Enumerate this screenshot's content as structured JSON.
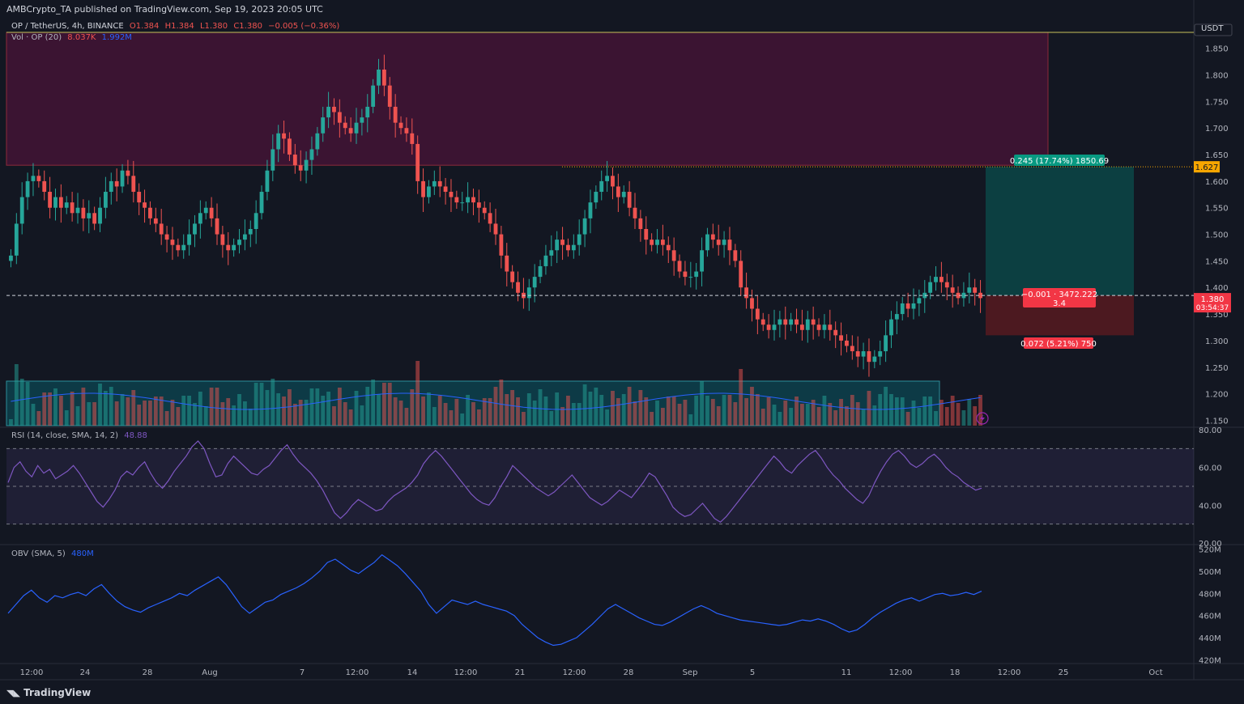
{
  "header": {
    "published": "AMBCrypto_TA published on TradingView.com, Sep 19, 2023 20:05 UTC"
  },
  "legend": {
    "symbol": "OP / TetherUS, 4h, BINANCE",
    "open": "O1.384",
    "high": "H1.384",
    "low": "L1.380",
    "close": "C1.380",
    "change": "−0.005 (−0.36%)",
    "vol_label": "Vol · OP (20)",
    "vol_value": "8.037K",
    "vol_ma": "1.992M"
  },
  "rsi_legend": {
    "label": "RSI (14, close, SMA, 14, 2)",
    "value": "48.88"
  },
  "obv_legend": {
    "label": "OBV (SMA, 5)",
    "value": "480M"
  },
  "currency": "USDT",
  "brand": "TradingView",
  "price_tag": {
    "price": "1.380",
    "countdown": "03:54:37"
  },
  "target_tag": "1.627",
  "position": {
    "target": "0.245 (17.74%) 1850.69",
    "entry_line1": "−0.001 · 3472.222",
    "entry_line2": "3.4",
    "stop": "0.072 (5.21%) 750"
  },
  "colors": {
    "up": "#26a69a",
    "down": "#ef5350",
    "rsi": "#7e57c2",
    "obv": "#2962ff",
    "bg": "#131722"
  },
  "chart_data": [
    {
      "type": "candlestick",
      "x_ticks": [
        "12:00",
        "24",
        "28",
        "Aug",
        "7",
        "12:00",
        "14",
        "12:00",
        "21",
        "12:00",
        "28",
        "Sep",
        "5",
        "11",
        "12:00",
        "18",
        "12:00",
        "25",
        "Oct"
      ],
      "y_ticks": [
        "1.850",
        "1.800",
        "1.750",
        "1.700",
        "1.650",
        "1.600",
        "1.550",
        "1.500",
        "1.450",
        "1.400",
        "1.350",
        "1.300",
        "1.250",
        "1.200",
        "1.150"
      ],
      "ylim": [
        1.14,
        1.88
      ],
      "close_series": [
        1.46,
        1.52,
        1.57,
        1.6,
        1.61,
        1.6,
        1.58,
        1.55,
        1.57,
        1.55,
        1.56,
        1.54,
        1.55,
        1.53,
        1.54,
        1.52,
        1.55,
        1.58,
        1.6,
        1.59,
        1.62,
        1.61,
        1.58,
        1.56,
        1.55,
        1.53,
        1.52,
        1.5,
        1.49,
        1.48,
        1.47,
        1.48,
        1.5,
        1.52,
        1.54,
        1.55,
        1.53,
        1.5,
        1.48,
        1.47,
        1.48,
        1.49,
        1.5,
        1.51,
        1.54,
        1.58,
        1.62,
        1.66,
        1.69,
        1.68,
        1.65,
        1.63,
        1.62,
        1.64,
        1.66,
        1.69,
        1.72,
        1.74,
        1.73,
        1.71,
        1.7,
        1.69,
        1.71,
        1.72,
        1.74,
        1.78,
        1.81,
        1.78,
        1.74,
        1.71,
        1.7,
        1.69,
        1.67,
        1.6,
        1.57,
        1.59,
        1.6,
        1.59,
        1.58,
        1.57,
        1.56,
        1.56,
        1.57,
        1.56,
        1.55,
        1.54,
        1.52,
        1.5,
        1.46,
        1.43,
        1.41,
        1.39,
        1.38,
        1.4,
        1.42,
        1.44,
        1.46,
        1.47,
        1.49,
        1.48,
        1.47,
        1.48,
        1.5,
        1.53,
        1.56,
        1.58,
        1.6,
        1.61,
        1.59,
        1.57,
        1.58,
        1.55,
        1.53,
        1.51,
        1.49,
        1.48,
        1.49,
        1.48,
        1.47,
        1.45,
        1.43,
        1.42,
        1.42,
        1.43,
        1.47,
        1.5,
        1.49,
        1.48,
        1.49,
        1.47,
        1.45,
        1.4,
        1.38,
        1.36,
        1.34,
        1.33,
        1.32,
        1.33,
        1.34,
        1.33,
        1.34,
        1.33,
        1.32,
        1.34,
        1.33,
        1.32,
        1.33,
        1.32,
        1.31,
        1.3,
        1.29,
        1.28,
        1.27,
        1.28,
        1.26,
        1.27,
        1.28,
        1.31,
        1.34,
        1.35,
        1.37,
        1.36,
        1.37,
        1.38,
        1.39,
        1.41,
        1.42,
        1.41,
        1.4,
        1.39,
        1.38,
        1.39,
        1.4,
        1.39,
        1.38
      ],
      "target_level": 1.627,
      "entry_level": 1.385,
      "stop_level": 1.31
    },
    {
      "type": "line",
      "name": "RSI",
      "ylim": [
        20,
        80
      ],
      "y_ticks": [
        "80.00",
        "60.00",
        "40.00",
        "20.00"
      ],
      "bands": [
        30,
        50,
        70
      ],
      "values": [
        52,
        60,
        63,
        58,
        55,
        61,
        57,
        59,
        54,
        56,
        58,
        61,
        57,
        52,
        47,
        42,
        39,
        43,
        48,
        55,
        58,
        56,
        60,
        63,
        57,
        52,
        49,
        53,
        58,
        62,
        66,
        71,
        74,
        70,
        62,
        55,
        56,
        62,
        66,
        63,
        60,
        57,
        56,
        59,
        61,
        65,
        69,
        72,
        67,
        63,
        60,
        57,
        53,
        48,
        42,
        36,
        33,
        36,
        40,
        43,
        41,
        39,
        37,
        38,
        42,
        45,
        47,
        49,
        52,
        56,
        62,
        66,
        69,
        66,
        62,
        58,
        54,
        50,
        46,
        43,
        41,
        40,
        44,
        50,
        55,
        61,
        58,
        55,
        52,
        49,
        47,
        45,
        47,
        50,
        53,
        56,
        52,
        48,
        44,
        42,
        40,
        42,
        45,
        48,
        46,
        44,
        48,
        52,
        57,
        55,
        50,
        45,
        39,
        36,
        34,
        35,
        38,
        41,
        37,
        33,
        31,
        34,
        38,
        42,
        46,
        50,
        54,
        58,
        62,
        66,
        63,
        59,
        57,
        61,
        64,
        67,
        69,
        65,
        60,
        56,
        53,
        49,
        46,
        43,
        41,
        45,
        52,
        58,
        63,
        67,
        69,
        66,
        62,
        60,
        62,
        65,
        67,
        64,
        60,
        57,
        55,
        52,
        50,
        48,
        49
      ]
    },
    {
      "type": "line",
      "name": "OBV",
      "y_ticks": [
        "520M",
        "500M",
        "480M",
        "460M",
        "440M",
        "420M"
      ],
      "ylim": [
        418,
        522
      ],
      "values": [
        462,
        470,
        478,
        483,
        476,
        472,
        478,
        476,
        479,
        481,
        478,
        484,
        488,
        480,
        473,
        468,
        465,
        463,
        467,
        470,
        473,
        476,
        480,
        478,
        483,
        487,
        491,
        495,
        488,
        478,
        468,
        462,
        467,
        472,
        474,
        479,
        482,
        485,
        489,
        494,
        500,
        508,
        511,
        506,
        501,
        498,
        503,
        508,
        515,
        510,
        505,
        498,
        490,
        482,
        470,
        462,
        468,
        474,
        472,
        470,
        473,
        470,
        468,
        466,
        464,
        460,
        452,
        446,
        440,
        436,
        433,
        434,
        437,
        440,
        446,
        452,
        459,
        466,
        470,
        466,
        462,
        458,
        455,
        452,
        451,
        454,
        458,
        462,
        466,
        469,
        466,
        462,
        460,
        458,
        456,
        455,
        454,
        453,
        452,
        451,
        452,
        454,
        456,
        455,
        457,
        455,
        452,
        448,
        445,
        447,
        452,
        458,
        463,
        467,
        471,
        474,
        476,
        473,
        476,
        479,
        480,
        478,
        479,
        481,
        479,
        482
      ]
    }
  ]
}
